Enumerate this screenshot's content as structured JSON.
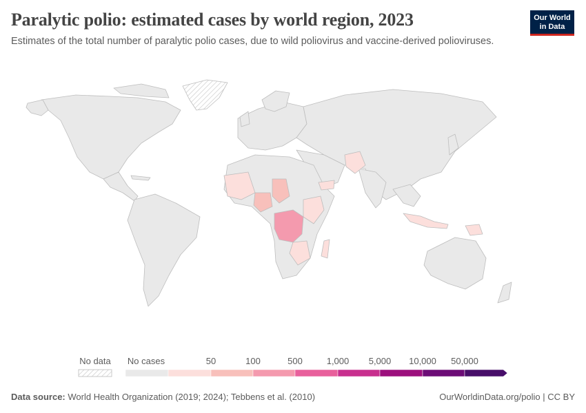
{
  "header": {
    "title": "Paralytic polio: estimated cases by world region, 2023",
    "subtitle": "Estimates of the total number of paralytic polio cases, due to wild poliovirus and vaccine-derived polioviruses."
  },
  "logo": {
    "line1": "Our World",
    "line2": "in Data"
  },
  "legend": {
    "no_data_label": "No data",
    "no_cases_label": "No cases",
    "ticks": [
      "50",
      "100",
      "500",
      "1,000",
      "5,000",
      "10,000",
      "50,000"
    ],
    "colors": {
      "no_cases": "#e9e9e9",
      "bin1": "#fcdfdc",
      "bin2": "#f8c0bb",
      "bin3": "#f49aae",
      "bin4": "#e8609c",
      "bin5": "#c82f8e",
      "bin6": "#9c0f7d",
      "bin7": "#6c0c76",
      "bin8": "#470e69"
    }
  },
  "map_data": {
    "highlighted_regions": [
      {
        "name": "Democratic Republic of Congo",
        "bin": "bin3"
      },
      {
        "name": "Chad",
        "bin": "bin2"
      },
      {
        "name": "Nigeria",
        "bin": "bin2"
      },
      {
        "name": "Pakistan",
        "bin": "bin1"
      },
      {
        "name": "Afghanistan",
        "bin": "bin1"
      },
      {
        "name": "Yemen",
        "bin": "bin1"
      },
      {
        "name": "Indonesia",
        "bin": "bin1"
      },
      {
        "name": "Papua New Guinea",
        "bin": "bin1"
      },
      {
        "name": "Madagascar",
        "bin": "bin1"
      }
    ],
    "no_data_regions": [
      "Greenland"
    ]
  },
  "footer": {
    "source_label": "Data source:",
    "source_text": "World Health Organization (2019; 2024); Tebbens et al. (2010)",
    "url_text": "OurWorldinData.org/polio | CC BY"
  }
}
